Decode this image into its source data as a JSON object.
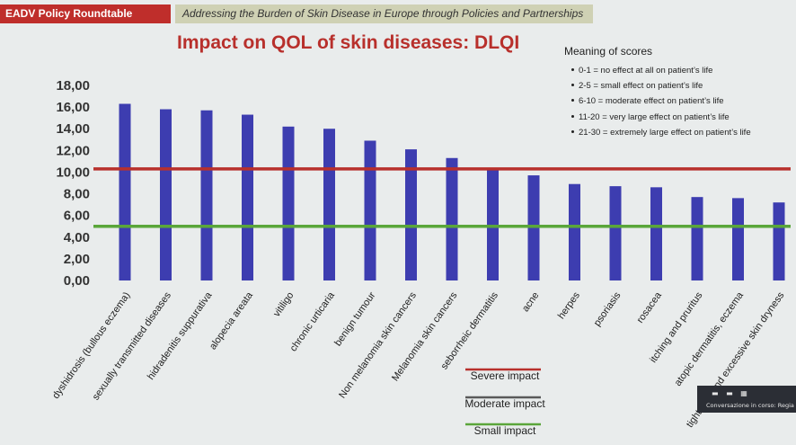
{
  "header": {
    "badge": "EADV Policy Roundtable",
    "subtitle": "Addressing the Burden of Skin Disease in Europe through Policies and Partnerships"
  },
  "meaning": {
    "title": "Meaning of scores",
    "items": [
      "0-1 = no effect at all on patient’s life",
      "2-5 = small effect on patient’s life",
      "6-10 = moderate effect on patient’s life",
      "11-20 = very large effect on patient’s life",
      "21-30 = extremely large effect on patient’s life"
    ]
  },
  "chat": {
    "icons": "▬ ▬ ▦",
    "text": "Conversazione in corso: Regia"
  },
  "chart_data": {
    "type": "bar",
    "title": "Impact on QOL of skin diseases: DLQI",
    "xlabel": "",
    "ylabel": "",
    "ylim": [
      0,
      18
    ],
    "yticks": [
      "0,00",
      "2,00",
      "4,00",
      "6,00",
      "8,00",
      "10,00",
      "12,00",
      "14,00",
      "16,00",
      "18,00"
    ],
    "grid": false,
    "bar_color": "#3d3db0",
    "categories": [
      "dyshidrosis (bullous eczema)",
      "sexually transmitted diseases",
      "hidradenitis suppurativa",
      "alopecia areata",
      "vitiligo",
      "chronic urticaria",
      "benign tumour",
      "Non melanomia skin cancers",
      "Melanomia skin cancers",
      "seborrheic dermatitis",
      "acne",
      "herpes",
      "psoriasis",
      "rosacea",
      "itching and pruritus",
      "atopic dermatitis, eczema",
      "tightness and excessive skin dryness"
    ],
    "values": [
      16.3,
      15.8,
      15.7,
      15.3,
      14.2,
      14.0,
      12.9,
      12.1,
      11.3,
      10.4,
      9.7,
      8.9,
      8.7,
      8.6,
      7.7,
      7.6,
      7.2
    ],
    "reference_lines": [
      {
        "name": "Severe impact",
        "value": 10.3,
        "color": "#b8302c"
      },
      {
        "name": "Small impact",
        "value": 5.0,
        "color": "#5aa63a"
      }
    ],
    "legend": {
      "placement": "bottom",
      "entries": [
        {
          "name": "Severe impact",
          "color": "#b8302c"
        },
        {
          "name": "Moderate impact",
          "color": "#5a5a5a"
        },
        {
          "name": "Small impact",
          "color": "#5aa63a"
        }
      ]
    }
  }
}
